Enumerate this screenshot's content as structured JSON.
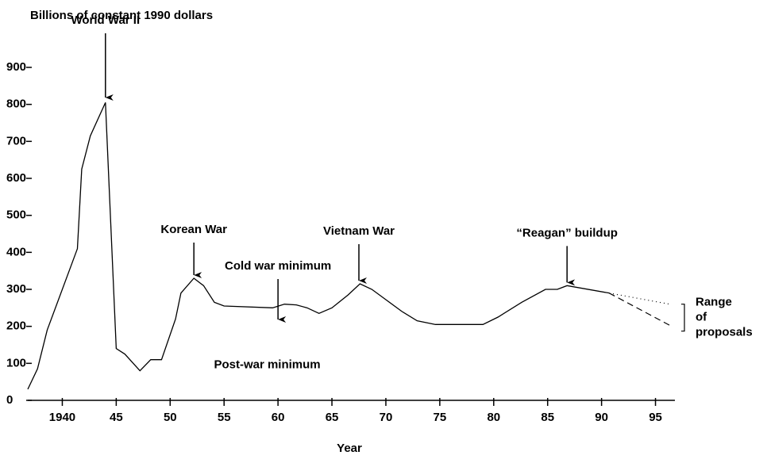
{
  "chart_data": {
    "type": "line",
    "subtitle": "Billions of constant 1990 dollars",
    "xlabel": "Year",
    "xlim": [
      1936.8,
      1996.8
    ],
    "ylim": [
      0,
      900
    ],
    "xticks": [
      {
        "value": 1940,
        "label": "1940"
      },
      {
        "value": 1945,
        "label": "45"
      },
      {
        "value": 1950,
        "label": "50"
      },
      {
        "value": 1955,
        "label": "55"
      },
      {
        "value": 1960,
        "label": "60"
      },
      {
        "value": 1965,
        "label": "65"
      },
      {
        "value": 1970,
        "label": "70"
      },
      {
        "value": 1975,
        "label": "75"
      },
      {
        "value": 1980,
        "label": "80"
      },
      {
        "value": 1985,
        "label": "85"
      },
      {
        "value": 1990,
        "label": "90"
      },
      {
        "value": 1995,
        "label": "95"
      }
    ],
    "yticks": [
      0,
      100,
      200,
      300,
      400,
      500,
      600,
      700,
      800,
      900
    ],
    "color": "#000000",
    "x": [
      1936.8,
      1937.7,
      1938.6,
      1941.4,
      1941.8,
      1942.6,
      1944,
      1945,
      1945.8,
      1947.2,
      1948.2,
      1949.2,
      1950.5,
      1951,
      1952.2,
      1953.1,
      1954.1,
      1955,
      1959.5,
      1960.6,
      1961.7,
      1962.7,
      1963.8,
      1965,
      1966.5,
      1967.6,
      1968.7,
      1970.1,
      1971.5,
      1972.9,
      1974.6,
      1979,
      1980.4,
      1982.6,
      1984.8,
      1985.9,
      1986.8,
      1990.7
    ],
    "values": [
      30,
      85,
      190,
      410,
      625,
      715,
      805,
      140,
      125,
      80,
      110,
      110,
      220,
      290,
      330,
      310,
      265,
      255,
      250,
      260,
      258,
      250,
      235,
      250,
      285,
      315,
      300,
      270,
      240,
      215,
      205,
      205,
      225,
      265,
      300,
      300,
      310,
      290
    ],
    "projections": [
      {
        "x": [
          1990.7,
          1996.3
        ],
        "values": [
          290,
          260
        ],
        "dash": "dotted"
      },
      {
        "x": [
          1990.7,
          1996.5
        ],
        "values": [
          290,
          200
        ],
        "dash": "dashed"
      }
    ],
    "annotations": [
      {
        "text": "World War II",
        "x": 1944,
        "y": 810
      },
      {
        "text": "Korean War",
        "x": 1952.2,
        "y": 330
      },
      {
        "text": "Cold war minimum",
        "x": 1960,
        "y": 210
      },
      {
        "text": "Vietnam War",
        "x": 1967.5,
        "y": 315
      },
      {
        "text": "“Reagan” buildup",
        "x": 1986.8,
        "y": 310
      },
      {
        "text": "Post-war minimum",
        "x": 1959,
        "y": 95
      }
    ],
    "range_note": [
      "Range",
      "of",
      "proposals"
    ]
  }
}
